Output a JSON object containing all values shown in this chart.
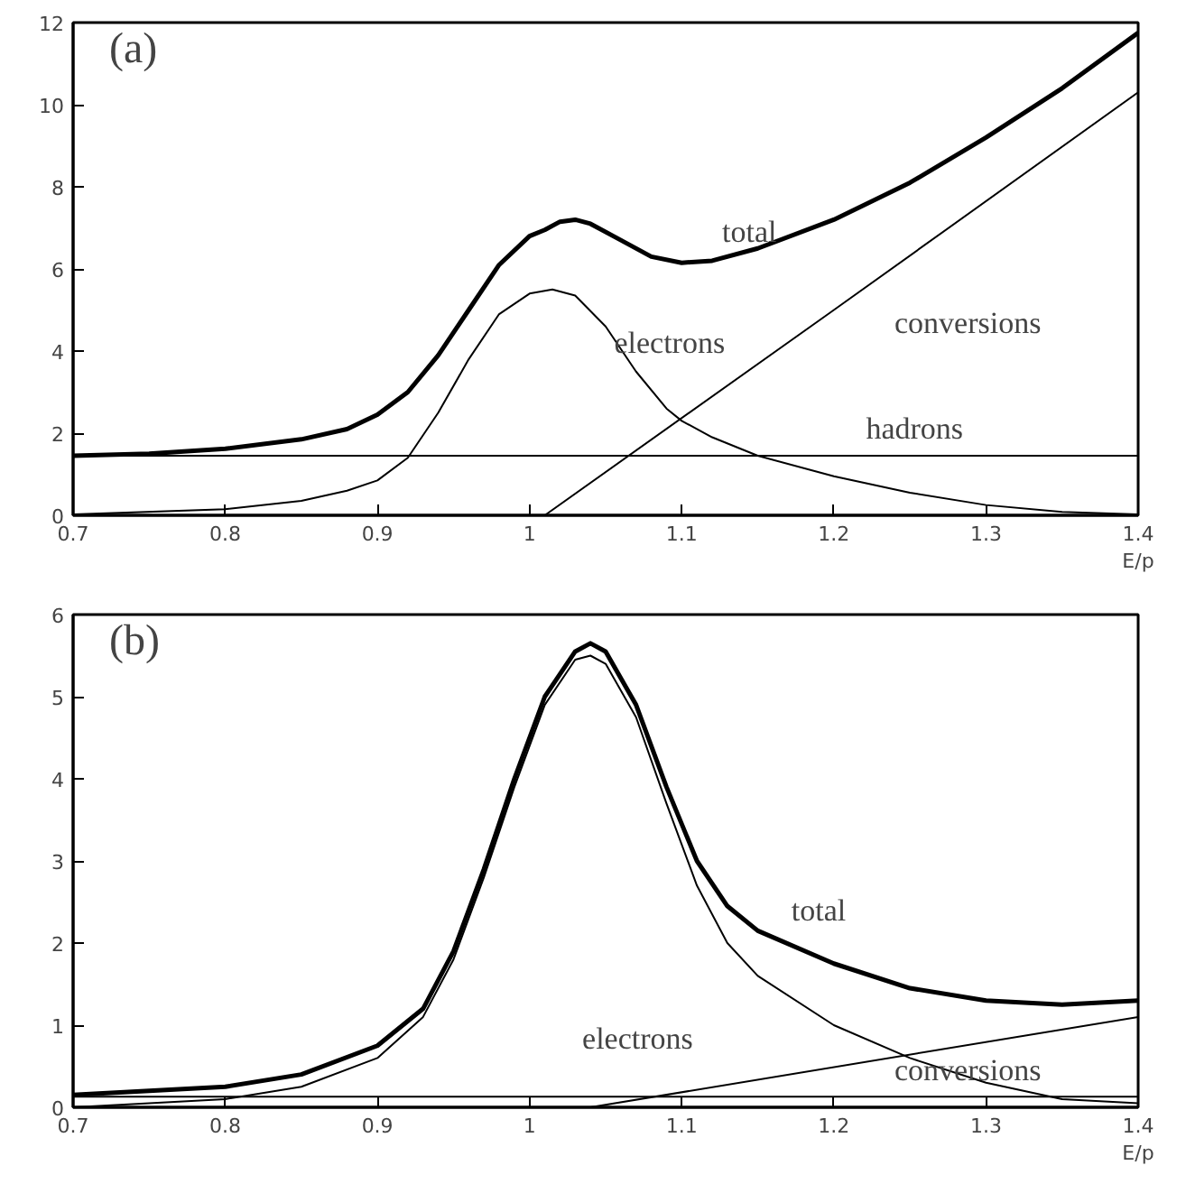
{
  "chart_data": [
    {
      "type": "line",
      "title": "(a)",
      "xlabel": "E/p",
      "xlim": [
        0.7,
        1.4
      ],
      "ylim": [
        0,
        12
      ],
      "xticks": [
        0.7,
        0.8,
        0.9,
        1,
        1.1,
        1.2,
        1.3,
        1.4
      ],
      "yticks": [
        0,
        2,
        4,
        6,
        8,
        10,
        12
      ],
      "grid": false,
      "series": [
        {
          "color": "#000000",
          "x": [
            0.7,
            0.75,
            0.8,
            0.85,
            0.88,
            0.9,
            0.92,
            0.94,
            0.96,
            0.98,
            1.0,
            1.01,
            1.02,
            1.03,
            1.04,
            1.06,
            1.08,
            1.1,
            1.12,
            1.15,
            1.2,
            1.25,
            1.3,
            1.35,
            1.4
          ],
          "values": [
            1.45,
            1.5,
            1.62,
            1.85,
            2.1,
            2.45,
            3.0,
            3.9,
            5.0,
            6.1,
            6.8,
            6.95,
            7.15,
            7.2,
            7.1,
            6.7,
            6.3,
            6.15,
            6.2,
            6.5,
            7.2,
            8.1,
            9.2,
            10.4,
            11.75
          ]
        },
        {
          "color": "#000000",
          "x": [
            0.7,
            0.8,
            0.85,
            0.88,
            0.9,
            0.92,
            0.94,
            0.96,
            0.98,
            1.0,
            1.015,
            1.03,
            1.05,
            1.07,
            1.09,
            1.1,
            1.12,
            1.15,
            1.2,
            1.25,
            1.3,
            1.35,
            1.4
          ],
          "values": [
            0.02,
            0.15,
            0.35,
            0.6,
            0.85,
            1.4,
            2.5,
            3.8,
            4.9,
            5.4,
            5.5,
            5.35,
            4.6,
            3.5,
            2.6,
            2.3,
            1.9,
            1.45,
            0.95,
            0.55,
            0.25,
            0.08,
            0.02
          ]
        },
        {
          "color": "#000000",
          "x": [
            0.7,
            1.4
          ],
          "values": [
            1.45,
            1.45
          ]
        },
        {
          "color": "#000000",
          "x": [
            1.01,
            1.2,
            1.4
          ],
          "values": [
            0,
            5.0,
            10.3
          ]
        }
      ],
      "annotations": [
        "total",
        "electrons",
        "conversions",
        "hadrons"
      ]
    },
    {
      "type": "line",
      "title": "(b)",
      "xlabel": "E/p",
      "xlim": [
        0.7,
        1.4
      ],
      "ylim": [
        0,
        6
      ],
      "xticks": [
        0.7,
        0.8,
        0.9,
        1,
        1.1,
        1.2,
        1.3,
        1.4
      ],
      "yticks": [
        0,
        1,
        2,
        3,
        4,
        5,
        6
      ],
      "grid": false,
      "series": [
        {
          "color": "#000000",
          "x": [
            0.7,
            0.8,
            0.85,
            0.9,
            0.93,
            0.95,
            0.97,
            0.99,
            1.01,
            1.03,
            1.04,
            1.05,
            1.07,
            1.09,
            1.11,
            1.13,
            1.15,
            1.2,
            1.25,
            1.3,
            1.35,
            1.4
          ],
          "values": [
            0.15,
            0.25,
            0.4,
            0.75,
            1.2,
            1.9,
            2.9,
            4.0,
            5.0,
            5.55,
            5.65,
            5.55,
            4.9,
            3.9,
            3.0,
            2.45,
            2.15,
            1.75,
            1.45,
            1.3,
            1.25,
            1.3
          ]
        },
        {
          "color": "#000000",
          "x": [
            0.7,
            0.8,
            0.85,
            0.9,
            0.93,
            0.95,
            0.97,
            0.99,
            1.01,
            1.03,
            1.04,
            1.05,
            1.07,
            1.09,
            1.11,
            1.13,
            1.15,
            1.2,
            1.25,
            1.3,
            1.35,
            1.4
          ],
          "values": [
            0.0,
            0.1,
            0.25,
            0.6,
            1.1,
            1.8,
            2.8,
            3.9,
            4.9,
            5.45,
            5.5,
            5.4,
            4.75,
            3.7,
            2.7,
            2.0,
            1.6,
            1.0,
            0.6,
            0.3,
            0.1,
            0.05
          ]
        },
        {
          "color": "#000000",
          "x": [
            0.7,
            1.4
          ],
          "values": [
            0.13,
            0.13
          ]
        },
        {
          "color": "#000000",
          "x": [
            1.04,
            1.4
          ],
          "values": [
            0,
            1.1
          ]
        }
      ],
      "annotations": [
        "total",
        "electrons",
        "conversions"
      ]
    }
  ]
}
